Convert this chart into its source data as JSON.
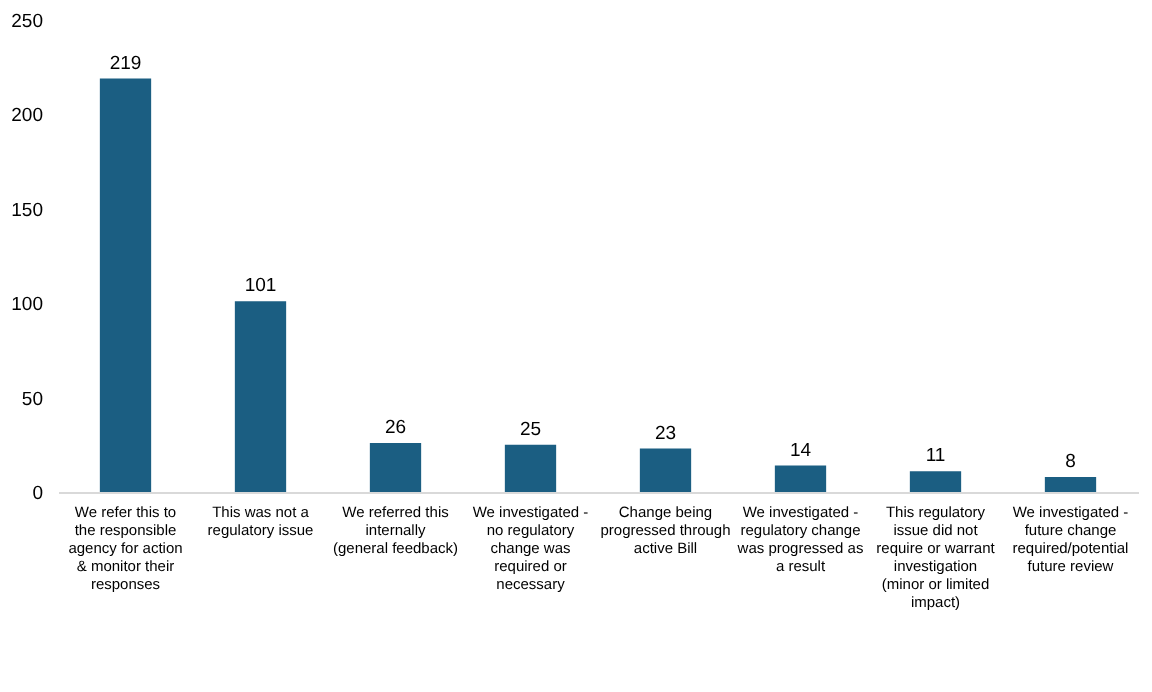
{
  "chart_data": {
    "type": "bar",
    "categories": [
      "We refer this to the responsible agency for action & monitor their responses",
      "This was not a regulatory issue",
      "We referred this internally (general feedback)",
      "We investigated - no regulatory change was required or necessary",
      "Change being progressed through active Bill",
      "We investigated - regulatory change was progressed as a result",
      "This regulatory issue did not require or warrant investigation (minor or limited impact)",
      "We investigated - future change required/potential future review"
    ],
    "values": [
      219,
      101,
      26,
      25,
      23,
      14,
      11,
      8
    ],
    "color": "#1b5e82",
    "ylim": [
      0,
      250
    ],
    "yticks": [
      0,
      50,
      100,
      150,
      200,
      250
    ],
    "data_labels": true,
    "grid": false
  }
}
